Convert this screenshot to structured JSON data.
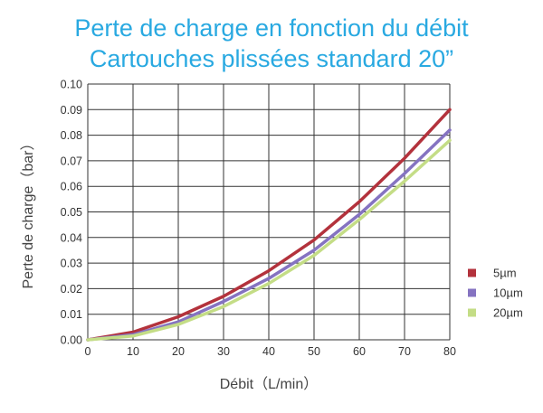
{
  "chart_data": {
    "type": "line",
    "title": [
      "Perte de charge en fonction du débit",
      "Cartouches plissées standard 20”"
    ],
    "xlabel": "Débit（L/min）",
    "ylabel": "Perte de charge（bar）",
    "xlim": [
      0,
      80
    ],
    "ylim": [
      0,
      0.1
    ],
    "xticks": [
      "0",
      "10",
      "20",
      "30",
      "40",
      "50",
      "60",
      "70",
      "80"
    ],
    "yticks": [
      "0.00",
      "0.01",
      "0.02",
      "0.03",
      "0.04",
      "0.05",
      "0.06",
      "0.07",
      "0.08",
      "0.09",
      "0.10"
    ],
    "grid": true,
    "legend_position": "right",
    "x": [
      0,
      10,
      20,
      30,
      40,
      50,
      60,
      70,
      80
    ],
    "series": [
      {
        "name": "5µm",
        "color": "#b3323c",
        "values": [
          0.0,
          0.003,
          0.009,
          0.017,
          0.027,
          0.039,
          0.054,
          0.071,
          0.09
        ]
      },
      {
        "name": "10µm",
        "color": "#8573c1",
        "values": [
          0.0,
          0.002,
          0.007,
          0.015,
          0.024,
          0.035,
          0.049,
          0.065,
          0.082
        ]
      },
      {
        "name": "20µm",
        "color": "#c4dd86",
        "values": [
          0.0,
          0.0015,
          0.006,
          0.013,
          0.022,
          0.033,
          0.047,
          0.062,
          0.078
        ]
      }
    ]
  }
}
